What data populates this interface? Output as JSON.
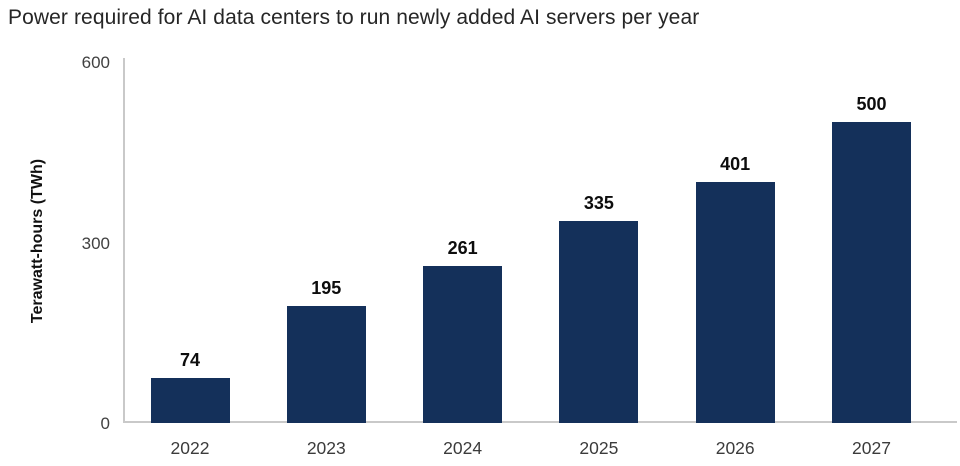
{
  "chart_data": {
    "type": "bar",
    "title": "Power required for AI data centers to run newly added AI servers per year",
    "ylabel": "Terawatt-hours (TWh)",
    "xlabel": "",
    "categories": [
      "2022",
      "2023",
      "2024",
      "2025",
      "2026",
      "2027"
    ],
    "values": [
      74,
      195,
      261,
      335,
      401,
      500
    ],
    "yticks": [
      0,
      300,
      600
    ],
    "ylim": [
      0,
      600
    ],
    "grid": false,
    "legend": "none",
    "bar_color": "#14305a",
    "axis_color": "#c9c9c9",
    "data_labels_shown": true
  }
}
